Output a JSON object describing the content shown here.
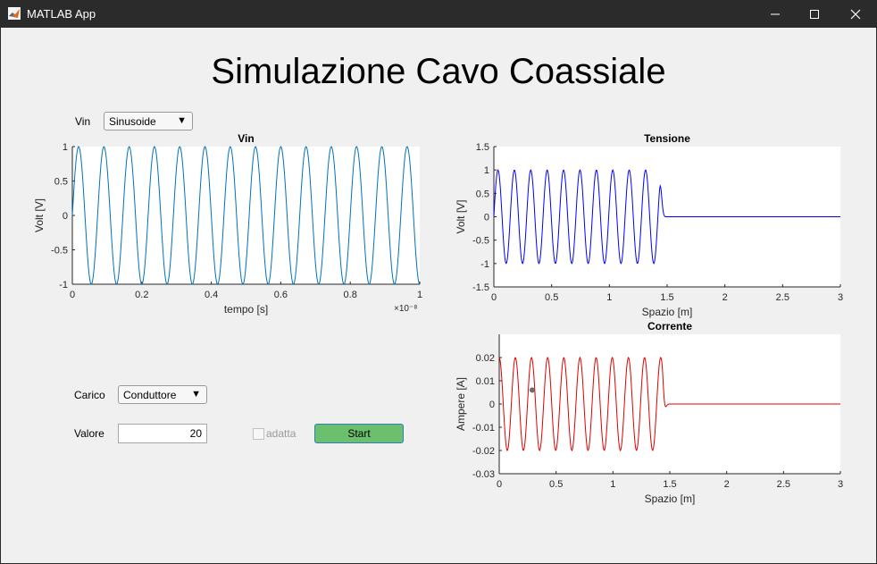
{
  "window": {
    "title": "MATLAB App",
    "icon": "matlab-logo-icon"
  },
  "app": {
    "heading": "Simulazione Cavo Coassiale"
  },
  "controls": {
    "vin_label": "Vin",
    "vin_selected": "Sinusoide",
    "carico_label": "Carico",
    "carico_selected": "Conduttore",
    "valore_label": "Valore",
    "valore_value": "20",
    "adatta_label": "adatta",
    "adatta_checked": false,
    "start_label": "Start"
  },
  "chart_data": [
    {
      "type": "line",
      "title": "Vin",
      "xlabel": "tempo [s]",
      "ylabel": "Volt [V]",
      "x_multiplier": "×10⁻⁸",
      "xlim": [
        0,
        1
      ],
      "ylim": [
        -1,
        1
      ],
      "xticks": [
        "0",
        "0.2",
        "0.4",
        "0.6",
        "0.8",
        "1"
      ],
      "yticks": [
        "1",
        "0.5",
        "0",
        "-0.5",
        "-1"
      ],
      "series": [
        {
          "color": "#0072bd",
          "function": "sin",
          "amplitude": 1,
          "periods": 13.75,
          "x_start": 0,
          "x_end": 1,
          "samples": 500
        }
      ]
    },
    {
      "type": "line",
      "title": "Tensione",
      "xlabel": "Spazio [m]",
      "ylabel": "Volt [V]",
      "xlim": [
        0,
        3
      ],
      "ylim": [
        -1.5,
        1.5
      ],
      "xticks": [
        "0",
        "0.5",
        "1",
        "1.5",
        "2",
        "2.5",
        "3"
      ],
      "yticks": [
        "1.5",
        "1",
        "0.5",
        "0",
        "-0.5",
        "-1",
        "-1.5"
      ],
      "series": [
        {
          "color": "#0000ff",
          "function": "sin",
          "amplitude": 1,
          "wave_length_m": 0.142,
          "front_m": 1.43,
          "x_start": 0,
          "x_end": 3,
          "samples": 600
        }
      ]
    },
    {
      "type": "line",
      "title": "Corrente",
      "xlabel": "Spazio [m]",
      "ylabel": "Ampere [A]",
      "xlim": [
        0,
        3
      ],
      "ylim": [
        -0.03,
        0.03
      ],
      "xticks": [
        "0",
        "0.5",
        "1",
        "1.5",
        "2",
        "2.5",
        "3"
      ],
      "yticks": [
        "0.02",
        "0.01",
        "0",
        "-0.01",
        "-0.02",
        "-0.03"
      ],
      "series": [
        {
          "color": "#e00000",
          "function": "cos",
          "amplitude": 0.02,
          "wave_length_m": 0.142,
          "front_m": 1.43,
          "x_start": 0,
          "x_end": 3,
          "samples": 600
        }
      ],
      "marker": {
        "x": 0.29,
        "y": 0.006
      }
    }
  ]
}
